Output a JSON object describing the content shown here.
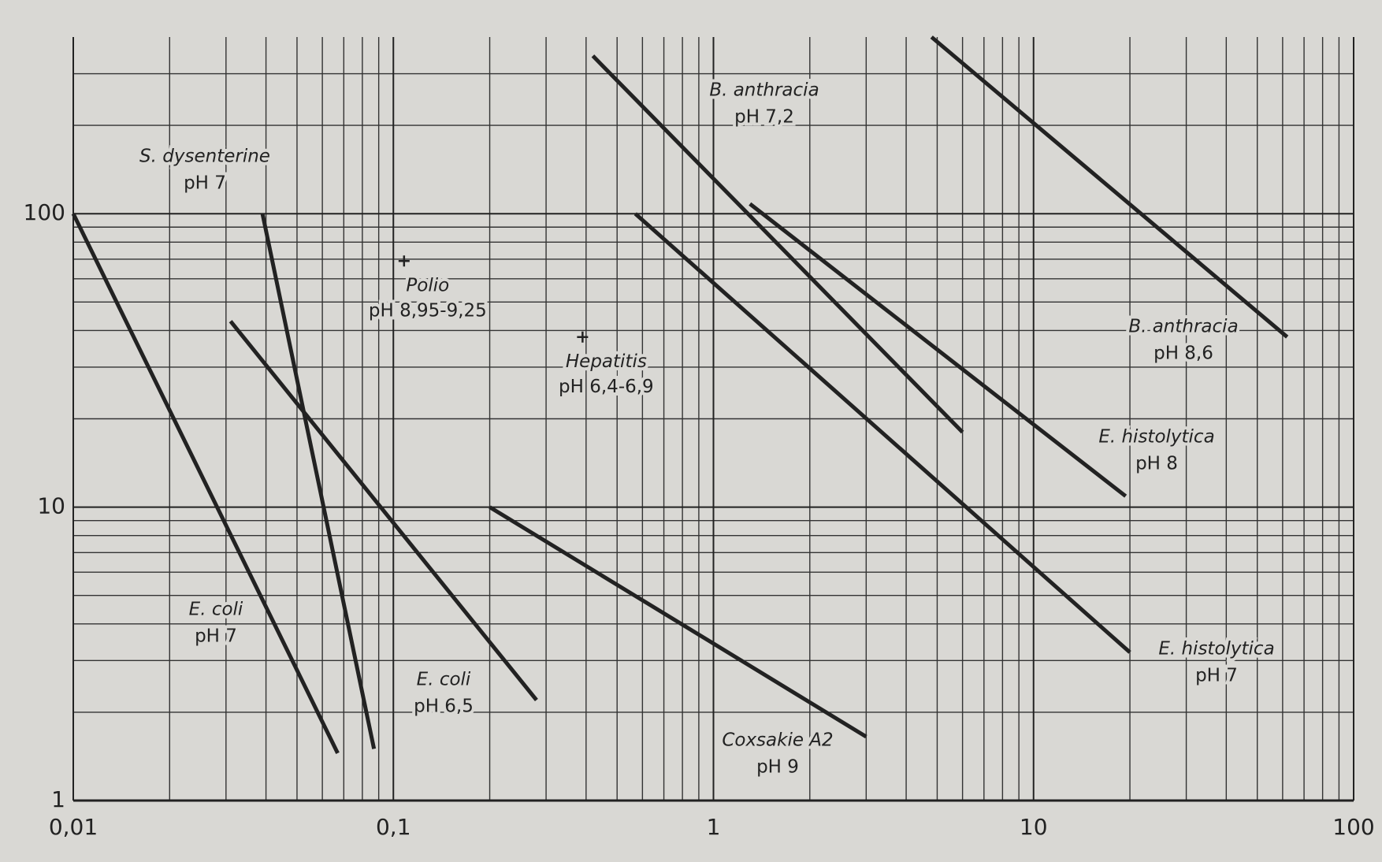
{
  "chart_data": {
    "type": "line",
    "log_x": true,
    "log_y": true,
    "grid": true,
    "minor_grid": true,
    "color": "#222222",
    "xlim": [
      0.01,
      100
    ],
    "ylim": [
      1,
      400
    ],
    "xticks": [
      {
        "value": 0.01,
        "label": "0,01"
      },
      {
        "value": 0.1,
        "label": "0,1"
      },
      1,
      10,
      100
    ],
    "yticks": [
      1,
      10,
      100
    ],
    "series": [
      {
        "name": "E. coli",
        "condition": "pH 7",
        "x": [
          0.01,
          0.067
        ],
        "values": [
          100,
          1.45
        ]
      },
      {
        "name": "S. dysenterine",
        "condition": "pH 7",
        "x": [
          0.039,
          0.087
        ],
        "values": [
          100,
          1.5
        ]
      },
      {
        "name": "E. coli",
        "condition": "pH 6,5",
        "x": [
          0.031,
          0.28
        ],
        "values": [
          43,
          2.2
        ]
      },
      {
        "name": "Coxsakie A2",
        "condition": "pH 9",
        "x": [
          0.2,
          3
        ],
        "values": [
          10,
          1.65
        ]
      },
      {
        "name": "B. anthracia",
        "condition": "pH 7,2",
        "x": [
          0.42,
          6
        ],
        "values": [
          345,
          18
        ]
      },
      {
        "name": "E. histolytica",
        "condition": "pH 7",
        "x": [
          0.57,
          20
        ],
        "values": [
          100,
          3.2
        ]
      },
      {
        "name": "E. histolytica",
        "condition": "pH 8",
        "x": [
          1.3,
          19.4
        ],
        "values": [
          108,
          10.9
        ]
      },
      {
        "name": "B. anthracia",
        "condition": "pH 8,6",
        "x": [
          4.8,
          62
        ],
        "values": [
          400,
          38
        ]
      }
    ],
    "points": [
      {
        "name": "Polio",
        "condition": "pH 8,95-9,25",
        "x": 0.108,
        "y": 69
      },
      {
        "name": "Hepatitis",
        "condition": "pH 6,4-6,9",
        "x": 0.39,
        "y": 38
      }
    ]
  }
}
